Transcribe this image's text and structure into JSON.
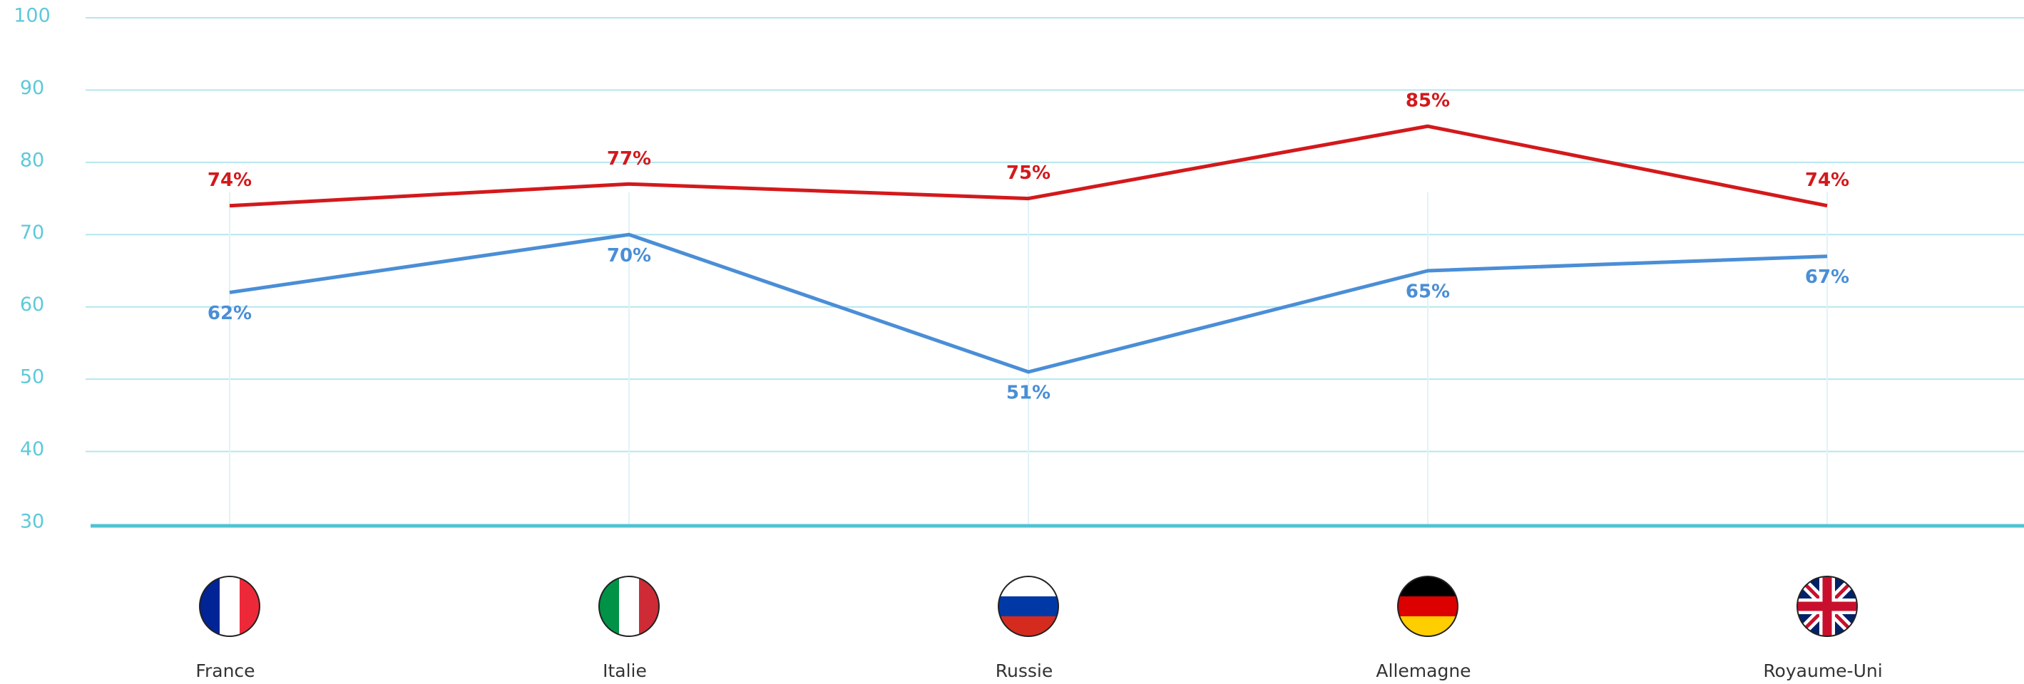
{
  "chart_data": {
    "type": "line",
    "categories": [
      "France",
      "Italie",
      "Russie",
      "Allemagne",
      "Royaume-Uni"
    ],
    "series": [
      {
        "color": "#d3191c",
        "values": [
          74,
          77,
          75,
          85,
          74
        ],
        "value_labels": [
          "74%",
          "77%",
          "75%",
          "85%",
          "74%"
        ]
      },
      {
        "color": "#4a8ed6",
        "values": [
          62,
          70,
          51,
          65,
          67
        ],
        "value_labels": [
          "62%",
          "70%",
          "51%",
          "65%",
          "67%"
        ]
      }
    ],
    "ylim": [
      30,
      100
    ],
    "yticks": [
      30,
      40,
      50,
      60,
      70,
      80,
      90,
      100
    ],
    "grid": true
  }
}
